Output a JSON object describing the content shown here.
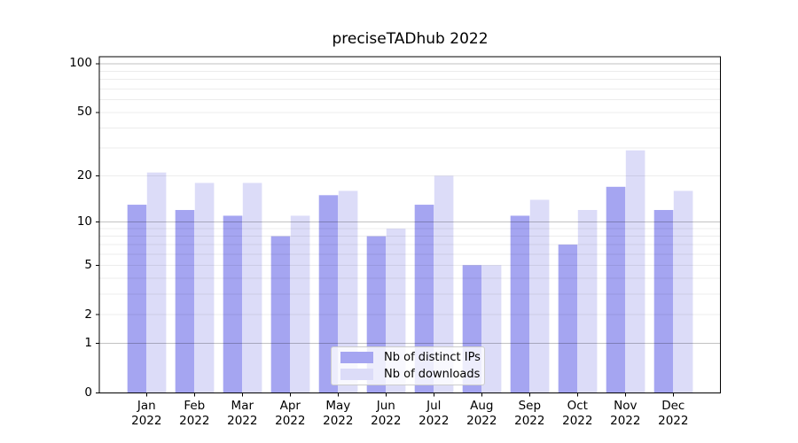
{
  "chart_data": {
    "type": "bar",
    "title": "preciseTADhub 2022",
    "y_scale": "log1p",
    "categories": [
      "Jan",
      "Feb",
      "Mar",
      "Apr",
      "May",
      "Jun",
      "Jul",
      "Aug",
      "Sep",
      "Oct",
      "Nov",
      "Dec"
    ],
    "category_year": "2022",
    "series": [
      {
        "name": "Nb of distinct IPs",
        "color": "#a5a5f1",
        "values": [
          13,
          12,
          11,
          8,
          15,
          8,
          13,
          5,
          11,
          7,
          17,
          12
        ]
      },
      {
        "name": "Nb of downloads",
        "color": "#dcdcf8",
        "values": [
          21,
          18,
          18,
          11,
          16,
          9,
          20,
          5,
          14,
          12,
          29,
          16
        ]
      }
    ],
    "y_ticks": [
      0,
      1,
      2,
      5,
      10,
      20,
      50,
      100
    ],
    "y_major_gridlines": [
      1,
      10,
      100
    ],
    "y_minor_gridlines": [
      2,
      3,
      4,
      5,
      6,
      7,
      8,
      9,
      20,
      30,
      40,
      50,
      60,
      70,
      80,
      90
    ],
    "ylim": [
      0,
      110
    ],
    "xlabel": "",
    "ylabel": "",
    "grid": true,
    "legend_position": "lower center"
  },
  "colors": {
    "axis": "#000000",
    "major_grid": "#c2c2c2",
    "minor_grid": "#ececec",
    "text": "#000000",
    "background": "#ffffff"
  }
}
